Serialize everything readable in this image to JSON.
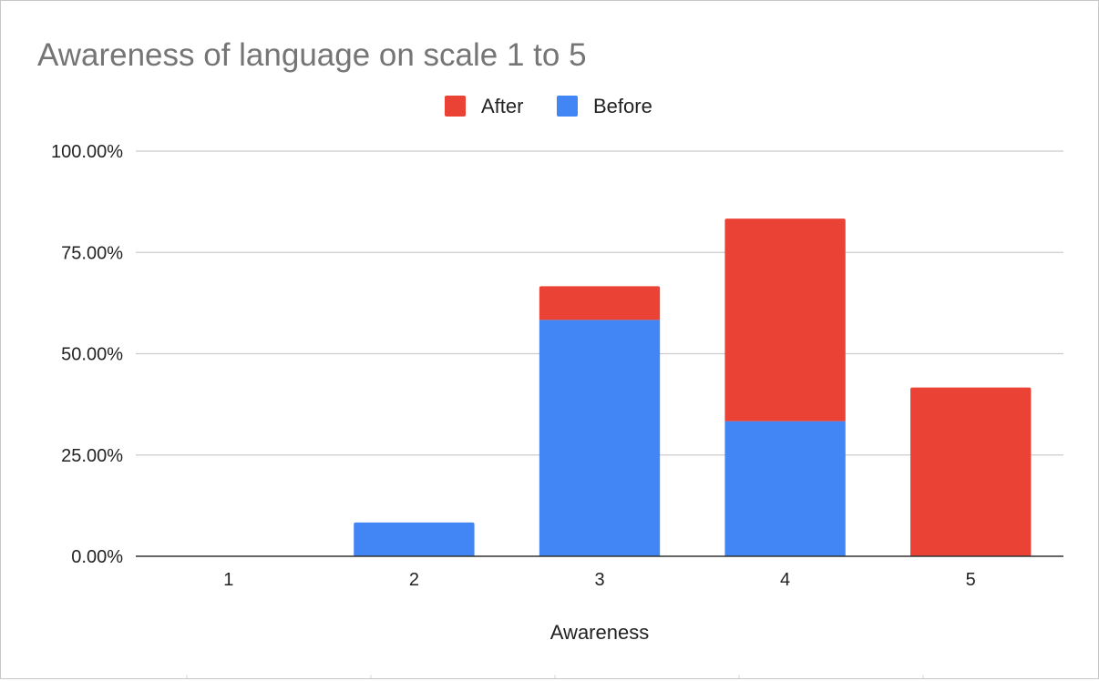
{
  "chart_data": {
    "type": "bar",
    "stacked": true,
    "title": "Awareness of language on scale 1 to 5",
    "xlabel": "Awareness",
    "ylabel": "",
    "categories": [
      "1",
      "2",
      "3",
      "4",
      "5"
    ],
    "series": [
      {
        "name": "Before",
        "color": "#4285F4",
        "values": [
          0,
          8.33,
          58.33,
          33.33,
          0
        ]
      },
      {
        "name": "After",
        "color": "#EA4335",
        "values": [
          0,
          0,
          8.33,
          50,
          41.67
        ]
      }
    ],
    "legend_order": [
      "After",
      "Before"
    ],
    "ylim": [
      0,
      100
    ],
    "yticks": [
      "0.00%",
      "25.00%",
      "50.00%",
      "75.00%",
      "100.00%"
    ],
    "grid": true,
    "legend": "top-center"
  }
}
